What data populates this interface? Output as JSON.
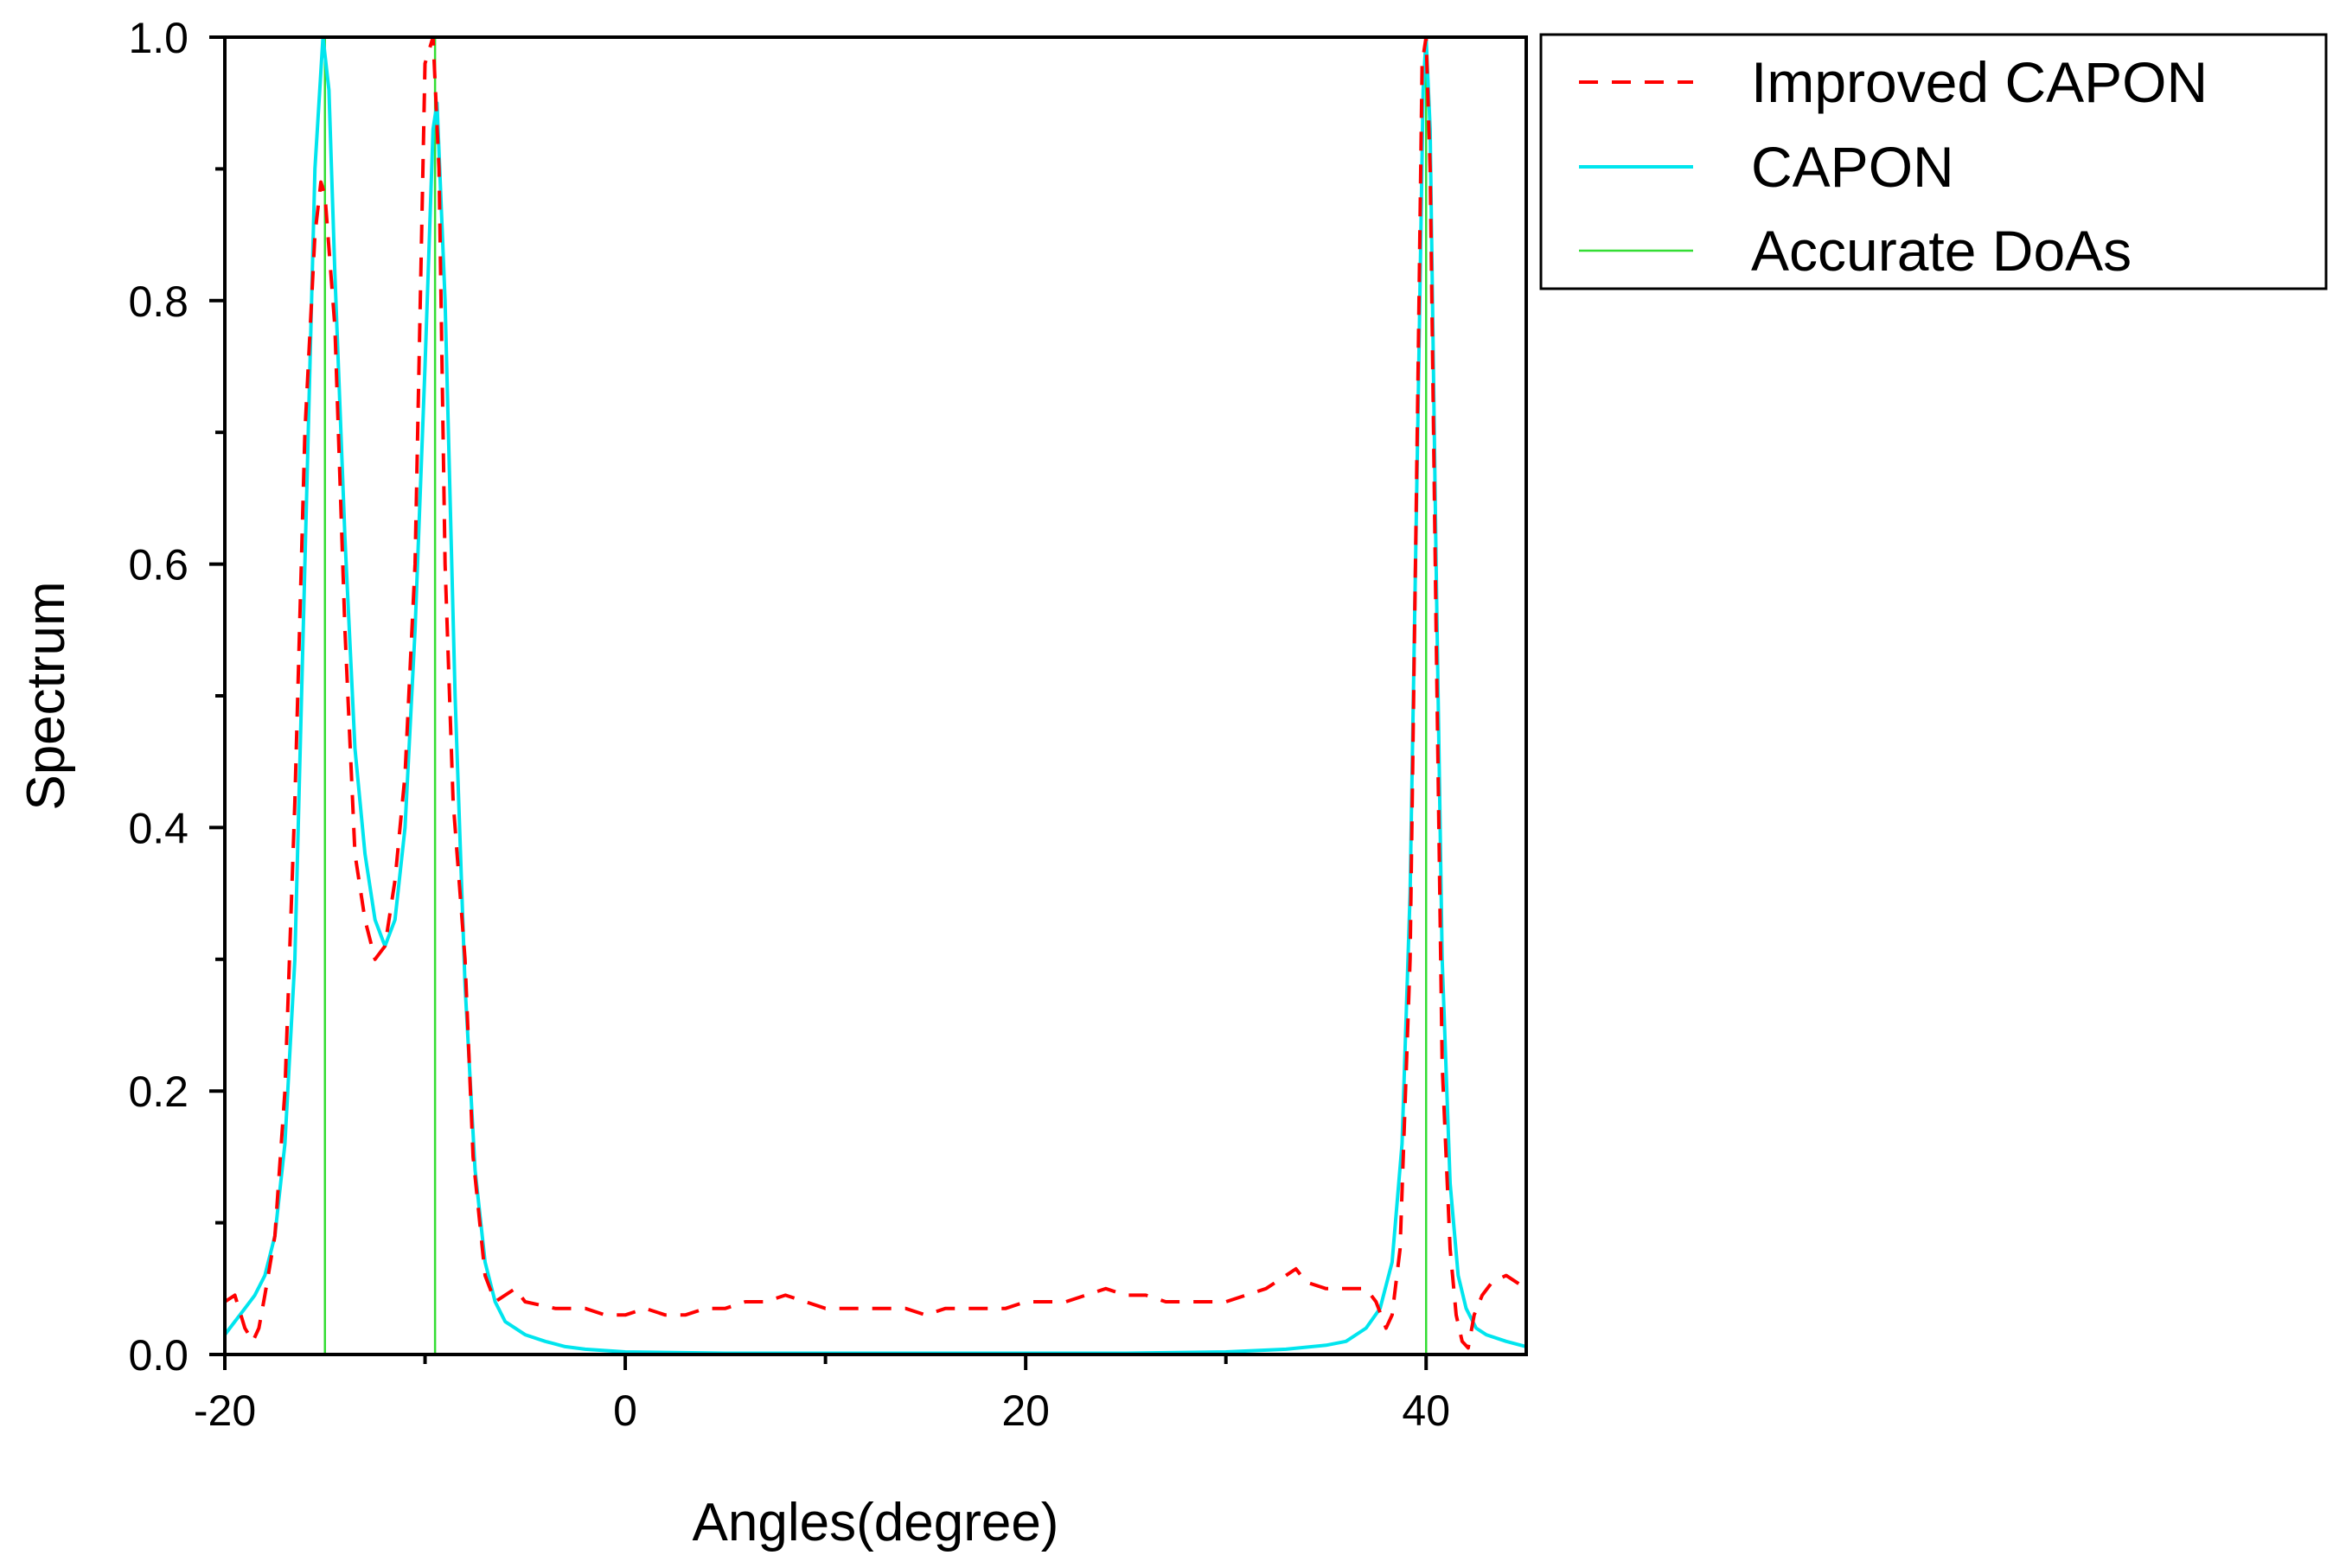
{
  "chart_data": {
    "type": "line",
    "xlabel": "Angles(degree)",
    "ylabel": "Spectrum",
    "xlim": [
      -20,
      45
    ],
    "ylim": [
      0,
      1.0
    ],
    "x_ticks": [
      -20,
      0,
      20,
      40
    ],
    "x_tick_labels": [
      "-20",
      "0",
      "20",
      "40"
    ],
    "x_minor_ticks": [
      -10,
      10,
      30
    ],
    "y_ticks": [
      0.0,
      0.2,
      0.4,
      0.6,
      0.8,
      1.0
    ],
    "y_tick_labels": [
      "0.0",
      "0.2",
      "0.4",
      "0.6",
      "0.8",
      "1.0"
    ],
    "y_minor_ticks": [
      0.1,
      0.3,
      0.5,
      0.7,
      0.9
    ],
    "grid": false,
    "legend_position": "top-right-outside",
    "series": [
      {
        "name": "Improved CAPON",
        "color": "#ff0000",
        "style": "dashed",
        "points": [
          [
            -20,
            0.04
          ],
          [
            -19.5,
            0.045
          ],
          [
            -19,
            0.02
          ],
          [
            -18.6,
            0.01
          ],
          [
            -18.3,
            0.02
          ],
          [
            -18,
            0.045
          ],
          [
            -17.5,
            0.09
          ],
          [
            -17,
            0.2
          ],
          [
            -16.5,
            0.42
          ],
          [
            -16,
            0.7
          ],
          [
            -15.5,
            0.85
          ],
          [
            -15.2,
            0.89
          ],
          [
            -15,
            0.88
          ],
          [
            -14.5,
            0.78
          ],
          [
            -14,
            0.55
          ],
          [
            -13.5,
            0.38
          ],
          [
            -13,
            0.33
          ],
          [
            -12.5,
            0.3
          ],
          [
            -12,
            0.31
          ],
          [
            -11.5,
            0.36
          ],
          [
            -11,
            0.44
          ],
          [
            -10.5,
            0.6
          ],
          [
            -10,
            0.98
          ],
          [
            -9.6,
            1.0
          ],
          [
            -9.3,
            0.9
          ],
          [
            -9,
            0.6
          ],
          [
            -8.6,
            0.42
          ],
          [
            -8,
            0.3
          ],
          [
            -7.6,
            0.15
          ],
          [
            -7,
            0.06
          ],
          [
            -6.5,
            0.04
          ],
          [
            -5.5,
            0.05
          ],
          [
            -5,
            0.04
          ],
          [
            -3.5,
            0.035
          ],
          [
            -2,
            0.035
          ],
          [
            -1,
            0.03
          ],
          [
            0,
            0.03
          ],
          [
            1,
            0.035
          ],
          [
            2,
            0.03
          ],
          [
            3,
            0.03
          ],
          [
            4,
            0.035
          ],
          [
            5,
            0.035
          ],
          [
            6,
            0.04
          ],
          [
            7,
            0.04
          ],
          [
            8,
            0.045
          ],
          [
            9,
            0.04
          ],
          [
            10,
            0.035
          ],
          [
            12,
            0.035
          ],
          [
            14,
            0.035
          ],
          [
            15,
            0.03
          ],
          [
            16,
            0.035
          ],
          [
            18,
            0.035
          ],
          [
            19,
            0.035
          ],
          [
            20,
            0.04
          ],
          [
            21,
            0.04
          ],
          [
            22,
            0.04
          ],
          [
            23,
            0.045
          ],
          [
            24,
            0.05
          ],
          [
            25,
            0.045
          ],
          [
            26,
            0.045
          ],
          [
            27,
            0.04
          ],
          [
            28,
            0.04
          ],
          [
            29,
            0.04
          ],
          [
            30,
            0.04
          ],
          [
            31,
            0.045
          ],
          [
            32,
            0.05
          ],
          [
            33,
            0.06
          ],
          [
            33.5,
            0.065
          ],
          [
            34,
            0.055
          ],
          [
            35,
            0.05
          ],
          [
            36,
            0.05
          ],
          [
            37,
            0.05
          ],
          [
            37.5,
            0.04
          ],
          [
            38,
            0.02
          ],
          [
            38.3,
            0.03
          ],
          [
            38.7,
            0.08
          ],
          [
            39.2,
            0.3
          ],
          [
            39.6,
            0.75
          ],
          [
            39.8,
            0.98
          ],
          [
            40,
            1.0
          ],
          [
            40.2,
            0.9
          ],
          [
            40.5,
            0.55
          ],
          [
            40.8,
            0.22
          ],
          [
            41.2,
            0.08
          ],
          [
            41.5,
            0.03
          ],
          [
            41.8,
            0.01
          ],
          [
            42.1,
            0.005
          ],
          [
            42.4,
            0.03
          ],
          [
            42.8,
            0.045
          ],
          [
            43.3,
            0.055
          ],
          [
            44,
            0.06
          ],
          [
            44.5,
            0.055
          ],
          [
            45,
            0.05
          ]
        ]
      },
      {
        "name": "CAPON",
        "color": "#00e5ee",
        "style": "solid",
        "points": [
          [
            -20,
            0.015
          ],
          [
            -19.5,
            0.025
          ],
          [
            -19,
            0.035
          ],
          [
            -18.5,
            0.045
          ],
          [
            -18,
            0.06
          ],
          [
            -17.5,
            0.09
          ],
          [
            -17,
            0.16
          ],
          [
            -16.5,
            0.3
          ],
          [
            -16,
            0.6
          ],
          [
            -15.5,
            0.9
          ],
          [
            -15.1,
            1.0
          ],
          [
            -14.8,
            0.96
          ],
          [
            -14.5,
            0.82
          ],
          [
            -14,
            0.62
          ],
          [
            -13.5,
            0.46
          ],
          [
            -13,
            0.38
          ],
          [
            -12.5,
            0.33
          ],
          [
            -12,
            0.31
          ],
          [
            -11.5,
            0.33
          ],
          [
            -11,
            0.4
          ],
          [
            -10.5,
            0.55
          ],
          [
            -10,
            0.75
          ],
          [
            -9.6,
            0.93
          ],
          [
            -9.4,
            0.95
          ],
          [
            -9,
            0.8
          ],
          [
            -8.5,
            0.5
          ],
          [
            -8,
            0.28
          ],
          [
            -7.5,
            0.14
          ],
          [
            -7,
            0.07
          ],
          [
            -6.5,
            0.04
          ],
          [
            -6,
            0.025
          ],
          [
            -5,
            0.015
          ],
          [
            -4,
            0.01
          ],
          [
            -3,
            0.006
          ],
          [
            -2,
            0.004
          ],
          [
            0,
            0.002
          ],
          [
            5,
            0.001
          ],
          [
            10,
            0.001
          ],
          [
            15,
            0.001
          ],
          [
            20,
            0.001
          ],
          [
            25,
            0.001
          ],
          [
            30,
            0.002
          ],
          [
            33,
            0.004
          ],
          [
            35,
            0.007
          ],
          [
            36,
            0.01
          ],
          [
            37,
            0.02
          ],
          [
            37.7,
            0.035
          ],
          [
            38.3,
            0.07
          ],
          [
            38.8,
            0.16
          ],
          [
            39.2,
            0.35
          ],
          [
            39.6,
            0.72
          ],
          [
            39.85,
            0.96
          ],
          [
            40,
            1.0
          ],
          [
            40.2,
            0.93
          ],
          [
            40.5,
            0.6
          ],
          [
            40.8,
            0.3
          ],
          [
            41.2,
            0.13
          ],
          [
            41.6,
            0.06
          ],
          [
            42,
            0.035
          ],
          [
            42.5,
            0.02
          ],
          [
            43,
            0.015
          ],
          [
            44,
            0.01
          ],
          [
            45,
            0.006
          ]
        ]
      },
      {
        "name": "Accurate DoAs",
        "color": "#33dd33",
        "style": "solid",
        "type": "vline",
        "x_values": [
          -15,
          -9.5,
          40
        ]
      }
    ]
  }
}
